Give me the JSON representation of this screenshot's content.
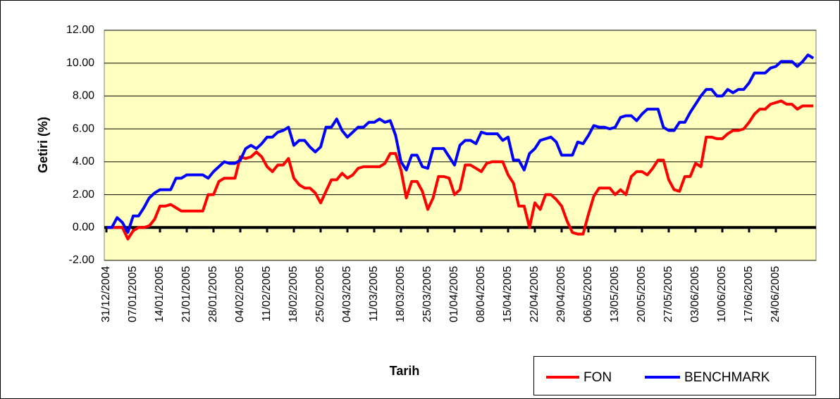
{
  "chart_data": {
    "type": "line",
    "ylabel": "Getiri (%)",
    "xlabel": "Tarih",
    "categories": [
      "31/12/2004",
      null,
      null,
      null,
      null,
      "07/01/2005",
      null,
      null,
      null,
      null,
      "14/01/2005",
      null,
      null,
      null,
      null,
      "21/01/2005",
      null,
      null,
      null,
      null,
      "28/01/2005",
      null,
      null,
      null,
      null,
      "04/02/2005",
      null,
      null,
      null,
      null,
      "11/02/2005",
      null,
      null,
      null,
      null,
      "18/02/2005",
      null,
      null,
      null,
      null,
      "25/02/2005",
      null,
      null,
      null,
      null,
      "04/03/2005",
      null,
      null,
      null,
      null,
      "11/03/2005",
      null,
      null,
      null,
      null,
      "18/03/2005",
      null,
      null,
      null,
      null,
      "25/03/2005",
      null,
      null,
      null,
      null,
      "01/04/2005",
      null,
      null,
      null,
      null,
      "08/04/2005",
      null,
      null,
      null,
      null,
      "15/04/2005",
      null,
      null,
      null,
      null,
      "22/04/2005",
      null,
      null,
      null,
      null,
      "29/04/2005",
      null,
      null,
      null,
      null,
      "06/05/2005",
      null,
      null,
      null,
      null,
      "13/05/2005",
      null,
      null,
      null,
      null,
      "20/05/2005",
      null,
      null,
      null,
      null,
      "27/05/2005",
      null,
      null,
      null,
      null,
      "03/06/2005",
      null,
      null,
      null,
      null,
      "10/06/2005",
      null,
      null,
      null,
      null,
      "17/06/2005",
      null,
      null,
      null,
      null,
      "24/06/2005",
      null,
      null,
      null,
      null,
      null,
      null,
      null
    ],
    "series": [
      {
        "name": "FON",
        "color": "#FF0000",
        "values": [
          0,
          0,
          0,
          0,
          -0.7,
          -0.2,
          0,
          0,
          0.1,
          0.5,
          1.3,
          1.3,
          1.4,
          1.2,
          1.0,
          1.0,
          1.0,
          1.0,
          1.0,
          2.0,
          2.0,
          2.8,
          3.0,
          3.0,
          3.0,
          4.3,
          4.2,
          4.3,
          4.6,
          4.3,
          3.7,
          3.4,
          3.8,
          3.8,
          4.2,
          3.0,
          2.6,
          2.4,
          2.4,
          2.1,
          1.5,
          2.2,
          2.9,
          2.9,
          3.3,
          3.0,
          3.2,
          3.6,
          3.7,
          3.7,
          3.7,
          3.7,
          3.9,
          4.5,
          4.5,
          3.5,
          1.8,
          2.8,
          2.8,
          2.2,
          1.1,
          1.8,
          3.1,
          3.1,
          3.0,
          2.0,
          2.3,
          3.8,
          3.8,
          3.6,
          3.4,
          3.9,
          4.0,
          4.0,
          4.0,
          3.2,
          2.7,
          1.3,
          1.3,
          0.0,
          1.5,
          1.1,
          2.0,
          2.0,
          1.7,
          1.3,
          0.4,
          -0.3,
          -0.4,
          -0.4,
          0.8,
          1.9,
          2.4,
          2.4,
          2.4,
          2.0,
          2.3,
          2.0,
          3.1,
          3.4,
          3.4,
          3.2,
          3.6,
          4.1,
          4.1,
          2.9,
          2.3,
          2.2,
          3.1,
          3.1,
          3.9,
          3.7,
          5.5,
          5.5,
          5.4,
          5.4,
          5.7,
          5.9,
          5.9,
          6.0,
          6.4,
          6.9,
          7.2,
          7.2,
          7.5,
          7.6,
          7.7,
          7.5,
          7.5,
          7.2,
          7.4,
          7.4,
          7.4
        ]
      },
      {
        "name": "BENCHMARK",
        "color": "#0000FF",
        "values": [
          0,
          0,
          0.6,
          0.3,
          -0.3,
          0.7,
          0.7,
          1.2,
          1.8,
          2.1,
          2.3,
          2.3,
          2.3,
          3.0,
          3.0,
          3.2,
          3.2,
          3.2,
          3.2,
          3.0,
          3.4,
          3.7,
          4.0,
          3.9,
          3.9,
          4.1,
          4.8,
          5.0,
          4.8,
          5.1,
          5.5,
          5.5,
          5.8,
          5.9,
          6.1,
          5.0,
          5.3,
          5.3,
          4.9,
          4.6,
          4.9,
          6.1,
          6.1,
          6.6,
          5.9,
          5.5,
          5.8,
          6.1,
          6.1,
          6.4,
          6.4,
          6.6,
          6.4,
          6.5,
          5.6,
          4.0,
          3.5,
          4.4,
          4.4,
          3.7,
          3.6,
          4.8,
          4.8,
          4.8,
          4.3,
          3.8,
          5.0,
          5.3,
          5.3,
          5.1,
          5.8,
          5.7,
          5.7,
          5.7,
          5.3,
          5.5,
          4.1,
          4.1,
          3.5,
          4.5,
          4.8,
          5.3,
          5.4,
          5.5,
          5.2,
          4.4,
          4.4,
          4.4,
          5.2,
          5.1,
          5.6,
          6.2,
          6.1,
          6.1,
          6.0,
          6.1,
          6.7,
          6.8,
          6.8,
          6.5,
          6.9,
          7.2,
          7.2,
          7.2,
          6.1,
          5.9,
          5.9,
          6.4,
          6.4,
          7.0,
          7.5,
          8.0,
          8.4,
          8.4,
          8.0,
          8.0,
          8.4,
          8.2,
          8.4,
          8.4,
          8.8,
          9.4,
          9.4,
          9.4,
          9.7,
          9.8,
          10.1,
          10.1,
          10.1,
          9.8,
          10.1,
          10.5,
          10.3
        ]
      }
    ],
    "ylim": [
      -2,
      12
    ],
    "yticks": [
      {
        "value": -2,
        "label": "-2.00"
      },
      {
        "value": 0,
        "label": "0.00"
      },
      {
        "value": 2,
        "label": "2.00"
      },
      {
        "value": 4,
        "label": "4.00"
      },
      {
        "value": 6,
        "label": "6.00"
      },
      {
        "value": 8,
        "label": "8.00"
      },
      {
        "value": 10,
        "label": "10.00"
      },
      {
        "value": 12,
        "label": "12.00"
      }
    ],
    "grid": true,
    "legend": "bottom-right",
    "plot_background": "#FFFFC0"
  }
}
